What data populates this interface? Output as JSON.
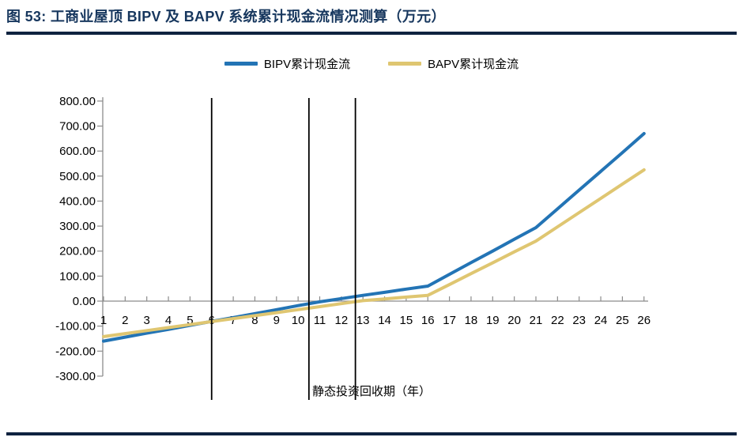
{
  "figure": {
    "title": "图 53: 工商业屋顶 BIPV 及 BAPV 系统累计现金流情况测算（万元）",
    "accent_color": "#17375E",
    "rule_color": "#0F2340"
  },
  "legend": [
    {
      "label": "BIPV累计现金流",
      "color": "#2374B5"
    },
    {
      "label": "BAPV累计现金流",
      "color": "#DFC671"
    }
  ],
  "chart_data": {
    "type": "line",
    "x": [
      1,
      2,
      3,
      4,
      5,
      6,
      7,
      8,
      9,
      10,
      11,
      12,
      13,
      14,
      15,
      16,
      17,
      18,
      19,
      20,
      21,
      22,
      23,
      24,
      25,
      26
    ],
    "series": [
      {
        "name": "BIPV累计现金流",
        "color": "#2374B5",
        "values": [
          -160,
          -144,
          -128,
          -113,
          -97,
          -81,
          -66,
          -50,
          -34,
          -18,
          -3,
          10,
          23,
          35,
          48,
          60,
          107,
          154,
          200,
          247,
          294,
          369,
          444,
          519,
          594,
          670
        ]
      },
      {
        "name": "BAPV累计现金流",
        "color": "#DFC671",
        "values": [
          -142,
          -130,
          -118,
          -106,
          -94,
          -82,
          -70,
          -58,
          -46,
          -34,
          -22,
          -10,
          2,
          9,
          16,
          23,
          66,
          110,
          153,
          197,
          240,
          297,
          354,
          411,
          468,
          525
        ]
      }
    ],
    "xlabel": "静态投资回收期（年）",
    "ylabel": "",
    "ylim": [
      -300,
      800
    ],
    "yticks": [
      800,
      700,
      600,
      500,
      400,
      300,
      200,
      100,
      0,
      -100,
      -200,
      -300
    ],
    "ytick_labels": [
      "800.00",
      "700.00",
      "600.00",
      "500.00",
      "400.00",
      "300.00",
      "200.00",
      "100.00",
      "0.00",
      "-100.00",
      "-200.00",
      "-300.00"
    ],
    "payback_marker_years": [
      6,
      10.5,
      12.65
    ],
    "marker_color": "#000000",
    "axis_color": "#8C8C8C",
    "tick_label_color": "#000000",
    "legend_position": "top",
    "grid": false
  }
}
